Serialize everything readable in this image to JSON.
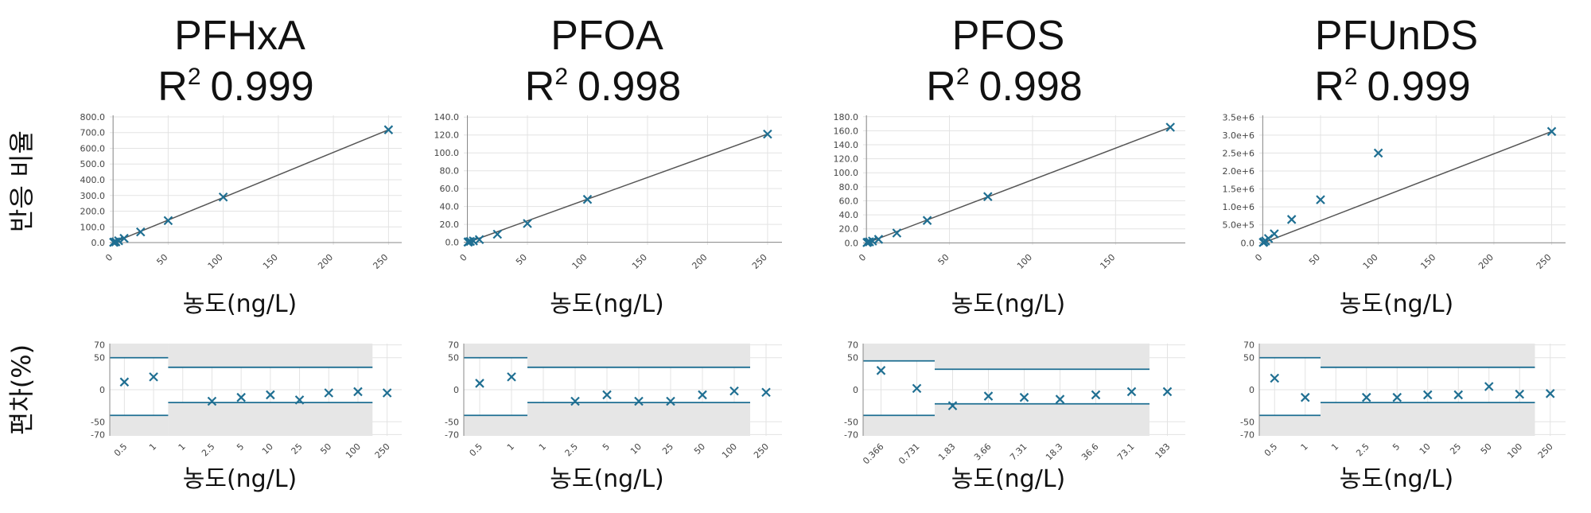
{
  "colors": {
    "marker": "#1f6f92",
    "fit_line": "#555555",
    "band": "#e6e6e6",
    "limit_line": "#1f6f92",
    "grid": "#e3e3e3"
  },
  "row_labels": {
    "top_ylabel": "반응 비율",
    "bottom_ylabel": "편차(%)"
  },
  "chart_data": [
    {
      "type": "scatter",
      "title": "PFHxA",
      "r2_label": "0.999",
      "calibration": {
        "xlabel": "농도(ng/L)",
        "x_ticks": [
          "0",
          "50",
          "100",
          "150",
          "200",
          "250"
        ],
        "y_ticks": [
          "0.0",
          "100.0",
          "200.0",
          "300.0",
          "400.0",
          "500.0",
          "600.0",
          "700.0",
          "800.0"
        ],
        "xlim": [
          -3,
          262
        ],
        "ylim": [
          -15,
          810
        ],
        "points": [
          [
            0.5,
            2
          ],
          [
            1,
            3
          ],
          [
            2.5,
            5
          ],
          [
            5,
            12
          ],
          [
            10,
            27
          ],
          [
            25,
            68
          ],
          [
            50,
            140
          ],
          [
            100,
            290
          ],
          [
            250,
            718
          ]
        ],
        "fit_line": [
          [
            0.5,
            1
          ],
          [
            250,
            718
          ]
        ]
      },
      "deviation": {
        "xlabel": "농도(ng/L)",
        "categories": [
          "0.5",
          "1",
          "1",
          "2.5",
          "5",
          "10",
          "25",
          "50",
          "100",
          "250"
        ],
        "y_ticks": [
          "70",
          "50",
          "0",
          "-50",
          "-70"
        ],
        "ylim": [
          -72,
          72
        ],
        "values": [
          12,
          20,
          null,
          -18,
          -12,
          -8,
          -16,
          -5,
          -3,
          -5
        ],
        "band": {
          "first_count": 2,
          "first_range": [
            -40,
            50
          ],
          "rest_range": [
            -20,
            35
          ],
          "rest_end_index": 8
        }
      }
    },
    {
      "type": "scatter",
      "title": "PFOA",
      "r2_label": "0.998",
      "calibration": {
        "xlabel": "농도(ng/L)",
        "x_ticks": [
          "0",
          "50",
          "100",
          "150",
          "200",
          "250"
        ],
        "y_ticks": [
          "0.0",
          "20.0",
          "40.0",
          "60.0",
          "80.0",
          "100.0",
          "120.0",
          "140.0"
        ],
        "xlim": [
          -3,
          262
        ],
        "ylim": [
          -3,
          142
        ],
        "points": [
          [
            0.5,
            0.2
          ],
          [
            1,
            0.5
          ],
          [
            2.5,
            1
          ],
          [
            5,
            1.5
          ],
          [
            10,
            3
          ],
          [
            25,
            9
          ],
          [
            50,
            21
          ],
          [
            100,
            48
          ],
          [
            250,
            121
          ]
        ],
        "fit_line": [
          [
            0.5,
            0
          ],
          [
            250,
            121
          ]
        ]
      },
      "deviation": {
        "xlabel": "농도(ng/L)",
        "categories": [
          "0.5",
          "1",
          "1",
          "2.5",
          "5",
          "10",
          "25",
          "50",
          "100",
          "250"
        ],
        "y_ticks": [
          "70",
          "50",
          "0",
          "-50",
          "-70"
        ],
        "ylim": [
          -72,
          72
        ],
        "values": [
          10,
          20,
          null,
          -18,
          -8,
          -18,
          -18,
          -8,
          -2,
          -4
        ],
        "band": {
          "first_count": 2,
          "first_range": [
            -40,
            50
          ],
          "rest_range": [
            -20,
            35
          ],
          "rest_end_index": 8
        }
      }
    },
    {
      "type": "scatter",
      "title": "PFOS",
      "r2_label": "0.998",
      "calibration": {
        "xlabel": "농도(ng/L)",
        "x_ticks": [
          "0",
          "50",
          "100",
          "150"
        ],
        "y_ticks": [
          "0.0",
          "20.0",
          "40.0",
          "60.0",
          "80.0",
          "100.0",
          "120.0",
          "140.0",
          "160.0",
          "180.0"
        ],
        "xlim": [
          -2,
          192
        ],
        "ylim": [
          -3,
          182
        ],
        "points": [
          [
            0.366,
            0.5
          ],
          [
            0.731,
            1
          ],
          [
            1.83,
            1.5
          ],
          [
            3.66,
            2.5
          ],
          [
            7.31,
            5
          ],
          [
            18.3,
            14
          ],
          [
            36.6,
            32
          ],
          [
            73.1,
            66
          ],
          [
            183,
            165
          ]
        ],
        "fit_line": [
          [
            0.366,
            0
          ],
          [
            183,
            165
          ]
        ]
      },
      "deviation": {
        "xlabel": "농도(ng/L)",
        "categories": [
          "0.366",
          "0.731",
          "1.83",
          "3.66",
          "7.31",
          "18.3",
          "36.6",
          "73.1",
          "183"
        ],
        "y_ticks": [
          "70",
          "50",
          "0",
          "-50",
          "-70"
        ],
        "ylim": [
          -72,
          72
        ],
        "values": [
          30,
          2,
          -25,
          -10,
          -12,
          -15,
          -8,
          -3,
          -3
        ],
        "band": {
          "first_count": 2,
          "first_range": [
            -40,
            45
          ],
          "rest_range": [
            -22,
            32
          ],
          "rest_end_index": 7
        }
      }
    },
    {
      "type": "scatter",
      "title": "PFUnDS",
      "r2_label": "0.999",
      "calibration": {
        "xlabel": "농도(ng/L)",
        "x_ticks": [
          "0",
          "50",
          "100",
          "150",
          "200",
          "250"
        ],
        "y_ticks": [
          "0.0",
          "5.0e+5",
          "1.0e+6",
          "1.5e+6",
          "2.0e+6",
          "2.5e+6",
          "3.0e+6",
          "3.5e+6"
        ],
        "xlim": [
          -3,
          262
        ],
        "ylim": [
          -60000,
          3550000
        ],
        "points": [
          [
            0.5,
            10000
          ],
          [
            1,
            25000
          ],
          [
            2.5,
            50000
          ],
          [
            5,
            120000
          ],
          [
            10,
            250000
          ],
          [
            25,
            650000
          ],
          [
            50,
            1200000
          ],
          [
            100,
            2500000
          ],
          [
            250,
            3100000
          ]
        ],
        "fit_line": [
          [
            0.5,
            0
          ],
          [
            250,
            3100000
          ]
        ]
      },
      "deviation": {
        "xlabel": "농도(ng/L)",
        "categories": [
          "0.5",
          "1",
          "1",
          "2.5",
          "5",
          "10",
          "25",
          "50",
          "100",
          "250"
        ],
        "y_ticks": [
          "70",
          "50",
          "0",
          "-50",
          "-70"
        ],
        "ylim": [
          -72,
          72
        ],
        "values": [
          18,
          -12,
          null,
          -12,
          -12,
          -8,
          -8,
          5,
          -7,
          -6
        ],
        "band": {
          "first_count": 2,
          "first_range": [
            -40,
            50
          ],
          "rest_range": [
            -20,
            35
          ],
          "rest_end_index": 8
        }
      }
    }
  ]
}
